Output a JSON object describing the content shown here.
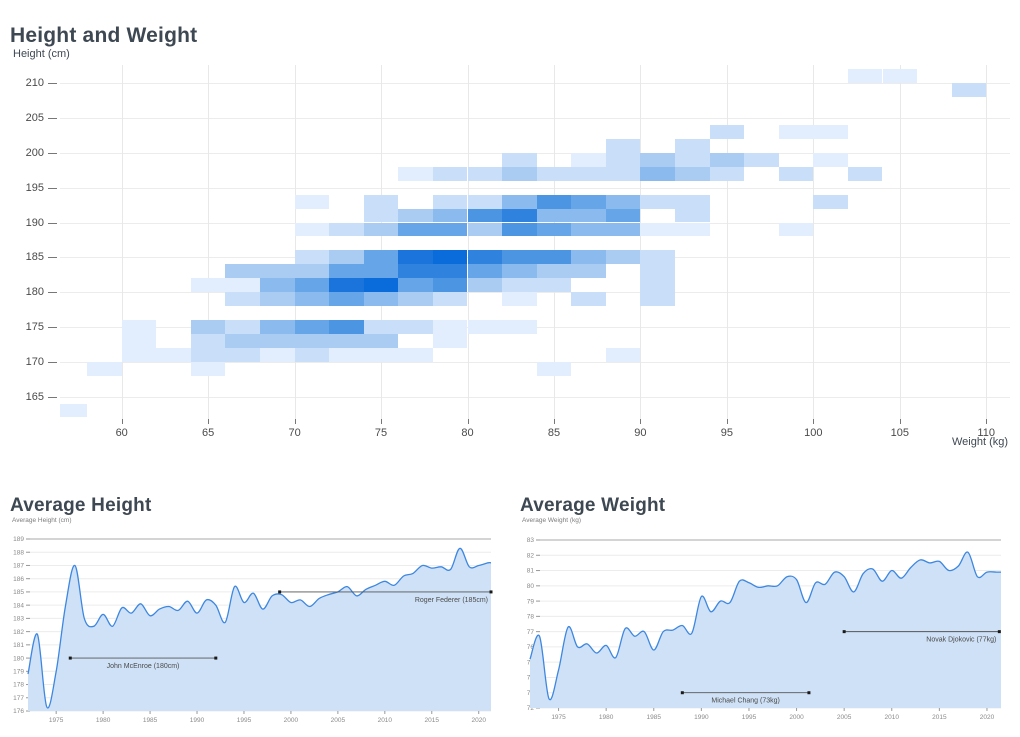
{
  "page_title": "Height and Weight",
  "chart_data": [
    {
      "id": "height-weight-heatmap",
      "type": "heatmap",
      "title": "Height and Weight",
      "xlabel": "Weight (kg)",
      "ylabel": "Height (cm)",
      "x_ticks": [
        60,
        65,
        70,
        75,
        80,
        85,
        90,
        95,
        100,
        105,
        110
      ],
      "y_ticks": [
        165,
        170,
        175,
        180,
        185,
        190,
        195,
        200,
        205,
        210
      ],
      "xlim": [
        56,
        111
      ],
      "ylim": [
        162,
        213
      ],
      "x_bin_size_kg": 2,
      "y_bin_size_cm": 2,
      "grid": "both, light gray",
      "intensity_scale": "1=lightest blue, 9=darkest blue",
      "palette": {
        "1": "#e2eefd",
        "2": "#c9def8",
        "3": "#aaccf3",
        "4": "#8abaee",
        "5": "#65a5e8",
        "6": "#4b95e3",
        "7": "#2f82de",
        "8": "#1b74dc",
        "9": "#0a6bda"
      },
      "cells": [
        [
          102,
          210,
          1
        ],
        [
          104,
          210,
          1
        ],
        [
          108,
          208,
          2
        ],
        [
          94,
          202,
          2
        ],
        [
          98,
          202,
          1
        ],
        [
          100,
          202,
          1
        ],
        [
          88,
          200,
          2
        ],
        [
          92,
          200,
          2
        ],
        [
          82,
          198,
          2
        ],
        [
          86,
          198,
          1
        ],
        [
          88,
          198,
          2
        ],
        [
          90,
          198,
          3
        ],
        [
          92,
          198,
          2
        ],
        [
          94,
          198,
          3
        ],
        [
          96,
          198,
          2
        ],
        [
          100,
          198,
          1
        ],
        [
          76,
          196,
          1
        ],
        [
          78,
          196,
          2
        ],
        [
          80,
          196,
          2
        ],
        [
          82,
          196,
          3
        ],
        [
          84,
          196,
          2
        ],
        [
          86,
          196,
          2
        ],
        [
          88,
          196,
          2
        ],
        [
          90,
          196,
          4
        ],
        [
          92,
          196,
          3
        ],
        [
          94,
          196,
          2
        ],
        [
          98,
          196,
          2
        ],
        [
          102,
          196,
          2
        ],
        [
          70,
          192,
          1
        ],
        [
          74,
          192,
          2
        ],
        [
          78,
          192,
          2
        ],
        [
          80,
          192,
          2
        ],
        [
          82,
          192,
          4
        ],
        [
          84,
          192,
          6
        ],
        [
          86,
          192,
          5
        ],
        [
          88,
          192,
          4
        ],
        [
          90,
          192,
          2
        ],
        [
          92,
          192,
          2
        ],
        [
          100,
          192,
          2
        ],
        [
          74,
          190,
          2
        ],
        [
          76,
          190,
          3
        ],
        [
          78,
          190,
          4
        ],
        [
          80,
          190,
          6
        ],
        [
          82,
          190,
          7
        ],
        [
          84,
          190,
          4
        ],
        [
          86,
          190,
          4
        ],
        [
          88,
          190,
          5
        ],
        [
          92,
          190,
          2
        ],
        [
          70,
          188,
          1
        ],
        [
          72,
          188,
          2
        ],
        [
          74,
          188,
          3
        ],
        [
          76,
          188,
          5
        ],
        [
          78,
          188,
          5
        ],
        [
          80,
          188,
          3
        ],
        [
          82,
          188,
          6
        ],
        [
          84,
          188,
          5
        ],
        [
          86,
          188,
          4
        ],
        [
          88,
          188,
          4
        ],
        [
          90,
          188,
          1
        ],
        [
          92,
          188,
          1
        ],
        [
          98,
          188,
          1
        ],
        [
          70,
          184,
          2
        ],
        [
          72,
          184,
          3
        ],
        [
          74,
          184,
          5
        ],
        [
          76,
          184,
          8
        ],
        [
          78,
          184,
          9
        ],
        [
          80,
          184,
          7
        ],
        [
          82,
          184,
          6
        ],
        [
          84,
          184,
          6
        ],
        [
          86,
          184,
          4
        ],
        [
          88,
          184,
          3
        ],
        [
          90,
          184,
          2
        ],
        [
          66,
          182,
          3
        ],
        [
          68,
          182,
          3
        ],
        [
          70,
          182,
          3
        ],
        [
          72,
          182,
          5
        ],
        [
          74,
          182,
          5
        ],
        [
          76,
          182,
          7
        ],
        [
          78,
          182,
          7
        ],
        [
          80,
          182,
          5
        ],
        [
          82,
          182,
          4
        ],
        [
          84,
          182,
          3
        ],
        [
          86,
          182,
          3
        ],
        [
          90,
          182,
          2
        ],
        [
          64,
          180,
          1
        ],
        [
          66,
          180,
          1
        ],
        [
          68,
          180,
          4
        ],
        [
          70,
          180,
          5
        ],
        [
          72,
          180,
          8
        ],
        [
          74,
          180,
          9
        ],
        [
          76,
          180,
          5
        ],
        [
          78,
          180,
          6
        ],
        [
          80,
          180,
          3
        ],
        [
          82,
          180,
          2
        ],
        [
          84,
          180,
          2
        ],
        [
          90,
          180,
          2
        ],
        [
          66,
          178,
          2
        ],
        [
          68,
          178,
          3
        ],
        [
          70,
          178,
          4
        ],
        [
          72,
          178,
          5
        ],
        [
          74,
          178,
          4
        ],
        [
          76,
          178,
          3
        ],
        [
          78,
          178,
          2
        ],
        [
          82,
          178,
          1
        ],
        [
          86,
          178,
          2
        ],
        [
          90,
          178,
          2
        ],
        [
          60,
          174,
          1
        ],
        [
          64,
          174,
          3
        ],
        [
          66,
          174,
          2
        ],
        [
          68,
          174,
          4
        ],
        [
          70,
          174,
          5
        ],
        [
          72,
          174,
          6
        ],
        [
          74,
          174,
          2
        ],
        [
          76,
          174,
          2
        ],
        [
          78,
          174,
          1
        ],
        [
          80,
          174,
          1
        ],
        [
          82,
          174,
          1
        ],
        [
          60,
          172,
          1
        ],
        [
          64,
          172,
          2
        ],
        [
          66,
          172,
          3
        ],
        [
          68,
          172,
          3
        ],
        [
          70,
          172,
          3
        ],
        [
          72,
          172,
          3
        ],
        [
          74,
          172,
          3
        ],
        [
          78,
          172,
          1
        ],
        [
          60,
          170,
          1
        ],
        [
          62,
          170,
          1
        ],
        [
          64,
          170,
          2
        ],
        [
          66,
          170,
          2
        ],
        [
          68,
          170,
          1
        ],
        [
          70,
          170,
          2
        ],
        [
          72,
          170,
          1
        ],
        [
          74,
          170,
          1
        ],
        [
          76,
          170,
          1
        ],
        [
          88,
          170,
          1
        ],
        [
          58,
          168,
          1
        ],
        [
          64,
          168,
          1
        ],
        [
          84,
          168,
          1
        ],
        [
          56,
          162,
          1
        ]
      ]
    },
    {
      "id": "average-height",
      "type": "area",
      "title": "Average Height",
      "ylabel": "Average Height (cm)",
      "ylim": [
        176,
        189
      ],
      "y_tick_step": 1,
      "x_ticks": [
        1975,
        1980,
        1985,
        1990,
        1995,
        2000,
        2005,
        2010,
        2015,
        2020
      ],
      "line_color": "#3d87e0",
      "fill_color": "#cfe1f6",
      "years": [
        1972,
        1973,
        1974,
        1975,
        1976,
        1977,
        1978,
        1979,
        1980,
        1981,
        1982,
        1983,
        1984,
        1985,
        1986,
        1987,
        1988,
        1989,
        1990,
        1991,
        1992,
        1993,
        1994,
        1995,
        1996,
        1997,
        1998,
        1999,
        2000,
        2001,
        2002,
        2003,
        2004,
        2005,
        2006,
        2007,
        2008,
        2009,
        2010,
        2011,
        2012,
        2013,
        2014,
        2015,
        2016,
        2017,
        2018,
        2019,
        2020,
        2021
      ],
      "values": [
        178.8,
        181.8,
        176.3,
        179.0,
        184.0,
        187.0,
        183.0,
        182.4,
        183.3,
        182.4,
        183.8,
        183.4,
        184.1,
        183.2,
        183.7,
        183.9,
        183.6,
        184.3,
        183.4,
        184.4,
        184.0,
        182.7,
        185.4,
        184.2,
        184.9,
        183.7,
        184.7,
        184.8,
        184.2,
        184.4,
        183.9,
        184.5,
        184.8,
        185.0,
        185.4,
        184.7,
        185.2,
        185.5,
        185.8,
        185.5,
        186.2,
        186.4,
        187.0,
        186.8,
        186.9,
        186.7,
        188.3,
        186.9,
        187.0,
        187.2
      ],
      "annotations": [
        {
          "label": "John McEnroe (180cm)",
          "value": 180,
          "x_from": 1976.5,
          "x_to": 1992,
          "label_align": "center"
        },
        {
          "label": "Roger Federer (185cm)",
          "value": 185,
          "x_from": 1998.8,
          "x_to": 2021.5,
          "label_align": "right"
        }
      ]
    },
    {
      "id": "average-weight",
      "type": "area",
      "title": "Average Weight",
      "ylabel": "Average Weight (kg)",
      "ylim": [
        72,
        83
      ],
      "y_tick_step": 1,
      "x_ticks": [
        1975,
        1980,
        1985,
        1990,
        1995,
        2000,
        2005,
        2010,
        2015,
        2020
      ],
      "line_color": "#3d87e0",
      "fill_color": "#cfe1f6",
      "years": [
        1972,
        1973,
        1974,
        1975,
        1976,
        1977,
        1978,
        1979,
        1980,
        1981,
        1982,
        1983,
        1984,
        1985,
        1986,
        1987,
        1988,
        1989,
        1990,
        1991,
        1992,
        1993,
        1994,
        1995,
        1996,
        1997,
        1998,
        1999,
        2000,
        2001,
        2002,
        2003,
        2004,
        2005,
        2006,
        2007,
        2008,
        2009,
        2010,
        2011,
        2012,
        2013,
        2014,
        2015,
        2016,
        2017,
        2018,
        2019,
        2020,
        2021
      ],
      "values": [
        75.2,
        76.7,
        72.6,
        74.5,
        77.3,
        76.0,
        76.2,
        75.6,
        76.1,
        75.3,
        77.2,
        76.7,
        77.0,
        75.8,
        77.0,
        77.1,
        77.4,
        76.9,
        79.3,
        78.3,
        79.0,
        78.9,
        80.3,
        80.2,
        79.9,
        80.0,
        80.0,
        80.6,
        80.4,
        78.9,
        80.2,
        80.1,
        80.9,
        80.6,
        79.6,
        80.8,
        81.1,
        80.3,
        81.0,
        80.5,
        81.2,
        81.7,
        81.5,
        81.6,
        81.0,
        81.3,
        82.2,
        80.6,
        80.9,
        80.9
      ],
      "annotations": [
        {
          "label": "Michael Chang (73kg)",
          "value": 73,
          "x_from": 1988,
          "x_to": 2001.3,
          "label_align": "center"
        },
        {
          "label": "Novak Djokovic (77kg)",
          "value": 77,
          "x_from": 2005,
          "x_to": 2021.3,
          "label_align": "right"
        }
      ]
    }
  ]
}
